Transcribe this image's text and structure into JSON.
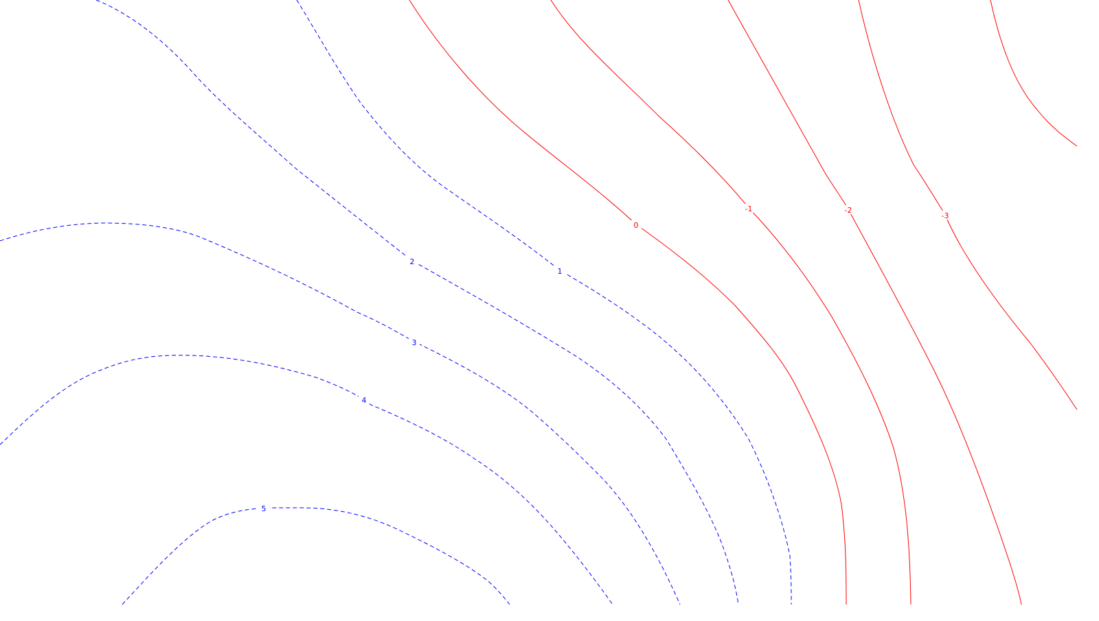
{
  "chart_data": {
    "type": "contour",
    "title": "",
    "xlabel": "",
    "ylabel": "",
    "grid": false,
    "colors": {
      "positive": "#0000ff",
      "zero_and_negative": "#ff0000",
      "background": "#ffffff"
    },
    "line_styles": {
      "positive": "dashed",
      "zero_and_negative": "solid"
    },
    "contours": [
      {
        "level": 5,
        "label": "5"
      },
      {
        "level": 4,
        "label": "4"
      },
      {
        "level": 3,
        "label": "3"
      },
      {
        "level": 2,
        "label": "2"
      },
      {
        "level": 1,
        "label": "1"
      },
      {
        "level": 0,
        "label": "0"
      },
      {
        "level": -1,
        "label": "-1"
      },
      {
        "level": -2,
        "label": "-2"
      },
      {
        "level": -3,
        "label": "-3"
      },
      {
        "level": -4,
        "label": ""
      }
    ]
  }
}
